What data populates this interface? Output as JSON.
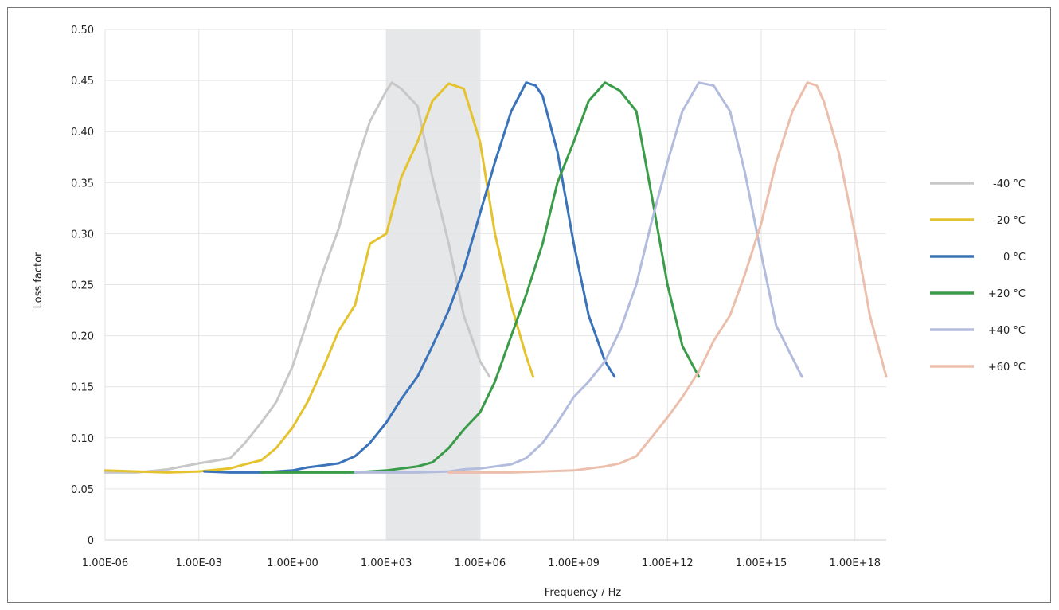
{
  "chart_data": {
    "type": "line",
    "title": "",
    "xlabel": "Frequency / Hz",
    "ylabel": "Loss factor",
    "x_scale": "log",
    "xlim": [
      1e-06,
      1e+19
    ],
    "ylim": [
      0,
      0.5
    ],
    "grid": true,
    "legend_position": "right",
    "highlight_band": {
      "x_from": 1000.0,
      "x_to": 1000000.0,
      "color": "#e6e7e9"
    },
    "x_ticks": [
      {
        "value": 1e-06,
        "label": "1.00E-06"
      },
      {
        "value": 0.001,
        "label": "1.00E-03"
      },
      {
        "value": 1.0,
        "label": "1.00E+00"
      },
      {
        "value": 1000.0,
        "label": "1.00E+03"
      },
      {
        "value": 1000000.0,
        "label": "1.00E+06"
      },
      {
        "value": 1000000000.0,
        "label": "1.00E+09"
      },
      {
        "value": 1000000000000.0,
        "label": "1.00E+12"
      },
      {
        "value": 1000000000000000.0,
        "label": "1.00E+15"
      },
      {
        "value": 1e+18,
        "label": "1.00E+18"
      }
    ],
    "y_ticks": [
      {
        "value": 0,
        "label": "0"
      },
      {
        "value": 0.05,
        "label": "0.05"
      },
      {
        "value": 0.1,
        "label": "0.10"
      },
      {
        "value": 0.15,
        "label": "0.15"
      },
      {
        "value": 0.2,
        "label": "0.20"
      },
      {
        "value": 0.25,
        "label": "0.25"
      },
      {
        "value": 0.3,
        "label": "0.30"
      },
      {
        "value": 0.35,
        "label": "0.35"
      },
      {
        "value": 0.4,
        "label": "0.40"
      },
      {
        "value": 0.45,
        "label": "0.45"
      },
      {
        "value": 0.5,
        "label": "0.50"
      }
    ],
    "series": [
      {
        "name": "-40 °C",
        "color": "#c8c8c8",
        "points": [
          [
            1e-06,
            0.066
          ],
          [
            1e-05,
            0.066
          ],
          [
            0.0001,
            0.069
          ],
          [
            0.001,
            0.075
          ],
          [
            0.01,
            0.08
          ],
          [
            0.03,
            0.095
          ],
          [
            0.1,
            0.115
          ],
          [
            0.3,
            0.135
          ],
          [
            1.0,
            0.17
          ],
          [
            3.0,
            0.215
          ],
          [
            10.0,
            0.265
          ],
          [
            30.0,
            0.305
          ],
          [
            100.0,
            0.365
          ],
          [
            300.0,
            0.41
          ],
          [
            1000.0,
            0.44
          ],
          [
            1500.0,
            0.448
          ],
          [
            3000.0,
            0.442
          ],
          [
            10000.0,
            0.425
          ],
          [
            30000.0,
            0.355
          ],
          [
            100000.0,
            0.29
          ],
          [
            300000.0,
            0.22
          ],
          [
            1000000.0,
            0.175
          ],
          [
            2000000.0,
            0.16
          ]
        ]
      },
      {
        "name": "-20 °C",
        "color": "#e5c32e",
        "points": [
          [
            1e-06,
            0.068
          ],
          [
            1e-05,
            0.067
          ],
          [
            0.0001,
            0.066
          ],
          [
            0.001,
            0.067
          ],
          [
            0.01,
            0.07
          ],
          [
            0.03,
            0.074
          ],
          [
            0.1,
            0.078
          ],
          [
            0.3,
            0.09
          ],
          [
            1.0,
            0.11
          ],
          [
            3.0,
            0.135
          ],
          [
            10.0,
            0.17
          ],
          [
            30.0,
            0.205
          ],
          [
            100.0,
            0.23
          ],
          [
            300.0,
            0.29
          ],
          [
            1000.0,
            0.3
          ],
          [
            3000.0,
            0.355
          ],
          [
            10000.0,
            0.39
          ],
          [
            30000.0,
            0.43
          ],
          [
            100000.0,
            0.447
          ],
          [
            300000.0,
            0.442
          ],
          [
            1000000.0,
            0.39
          ],
          [
            3000000.0,
            0.3
          ],
          [
            10000000.0,
            0.23
          ],
          [
            30000000.0,
            0.18
          ],
          [
            50000000.0,
            0.16
          ]
        ]
      },
      {
        "name": "0 °C",
        "color": "#3a73b9",
        "points": [
          [
            0.0015,
            0.067
          ],
          [
            0.01,
            0.066
          ],
          [
            0.1,
            0.066
          ],
          [
            1.0,
            0.068
          ],
          [
            3.0,
            0.071
          ],
          [
            10.0,
            0.073
          ],
          [
            30.0,
            0.075
          ],
          [
            100.0,
            0.082
          ],
          [
            300.0,
            0.095
          ],
          [
            1000.0,
            0.115
          ],
          [
            3000.0,
            0.138
          ],
          [
            10000.0,
            0.16
          ],
          [
            30000.0,
            0.19
          ],
          [
            100000.0,
            0.225
          ],
          [
            300000.0,
            0.265
          ],
          [
            1000000.0,
            0.32
          ],
          [
            3000000.0,
            0.37
          ],
          [
            10000000.0,
            0.42
          ],
          [
            30000000.0,
            0.448
          ],
          [
            60000000.0,
            0.445
          ],
          [
            100000000.0,
            0.435
          ],
          [
            300000000.0,
            0.38
          ],
          [
            1000000000.0,
            0.29
          ],
          [
            3000000000.0,
            0.22
          ],
          [
            10000000000.0,
            0.175
          ],
          [
            20000000000.0,
            0.16
          ]
        ]
      },
      {
        "name": "+20 °C",
        "color": "#3a9c48",
        "points": [
          [
            0.1,
            0.066
          ],
          [
            1.0,
            0.066
          ],
          [
            10.0,
            0.066
          ],
          [
            100.0,
            0.066
          ],
          [
            1000.0,
            0.068
          ],
          [
            10000.0,
            0.072
          ],
          [
            30000.0,
            0.076
          ],
          [
            100000.0,
            0.09
          ],
          [
            300000.0,
            0.108
          ],
          [
            1000000.0,
            0.125
          ],
          [
            3000000.0,
            0.155
          ],
          [
            10000000.0,
            0.2
          ],
          [
            30000000.0,
            0.24
          ],
          [
            100000000.0,
            0.29
          ],
          [
            300000000.0,
            0.35
          ],
          [
            1000000000.0,
            0.39
          ],
          [
            3000000000.0,
            0.43
          ],
          [
            10000000000.0,
            0.448
          ],
          [
            30000000000.0,
            0.44
          ],
          [
            100000000000.0,
            0.42
          ],
          [
            300000000000.0,
            0.34
          ],
          [
            1000000000000.0,
            0.25
          ],
          [
            3000000000000.0,
            0.19
          ],
          [
            10000000000000.0,
            0.16
          ]
        ]
      },
      {
        "name": "+40 °C",
        "color": "#b3bcdd",
        "points": [
          [
            100.0,
            0.066
          ],
          [
            1000.0,
            0.066
          ],
          [
            10000.0,
            0.066
          ],
          [
            100000.0,
            0.067
          ],
          [
            300000.0,
            0.069
          ],
          [
            1000000.0,
            0.07
          ],
          [
            10000000.0,
            0.074
          ],
          [
            30000000.0,
            0.08
          ],
          [
            100000000.0,
            0.095
          ],
          [
            300000000.0,
            0.115
          ],
          [
            1000000000.0,
            0.14
          ],
          [
            3000000000.0,
            0.155
          ],
          [
            10000000000.0,
            0.175
          ],
          [
            30000000000.0,
            0.205
          ],
          [
            100000000000.0,
            0.25
          ],
          [
            300000000000.0,
            0.31
          ],
          [
            1000000000000.0,
            0.37
          ],
          [
            3000000000000.0,
            0.42
          ],
          [
            10000000000000.0,
            0.448
          ],
          [
            30000000000000.0,
            0.445
          ],
          [
            100000000000000.0,
            0.42
          ],
          [
            300000000000000.0,
            0.36
          ],
          [
            1000000000000000.0,
            0.28
          ],
          [
            3000000000000000.0,
            0.21
          ],
          [
            2e+16,
            0.16
          ]
        ]
      },
      {
        "name": "+60 °C",
        "color": "#ecbfac",
        "points": [
          [
            100000.0,
            0.066
          ],
          [
            1000000.0,
            0.066
          ],
          [
            10000000.0,
            0.066
          ],
          [
            100000000.0,
            0.067
          ],
          [
            1000000000.0,
            0.068
          ],
          [
            10000000000.0,
            0.072
          ],
          [
            30000000000.0,
            0.075
          ],
          [
            100000000000.0,
            0.082
          ],
          [
            300000000000.0,
            0.1
          ],
          [
            1000000000000.0,
            0.12
          ],
          [
            3000000000000.0,
            0.14
          ],
          [
            10000000000000.0,
            0.165
          ],
          [
            30000000000000.0,
            0.195
          ],
          [
            100000000000000.0,
            0.22
          ],
          [
            300000000000000.0,
            0.26
          ],
          [
            1000000000000000.0,
            0.31
          ],
          [
            3000000000000000.0,
            0.37
          ],
          [
            1e+16,
            0.42
          ],
          [
            3e+16,
            0.448
          ],
          [
            6e+16,
            0.445
          ],
          [
            1e+17,
            0.43
          ],
          [
            3e+17,
            0.38
          ],
          [
            1e+18,
            0.3
          ],
          [
            3e+18,
            0.22
          ],
          [
            1e+19,
            0.16
          ]
        ]
      }
    ]
  }
}
